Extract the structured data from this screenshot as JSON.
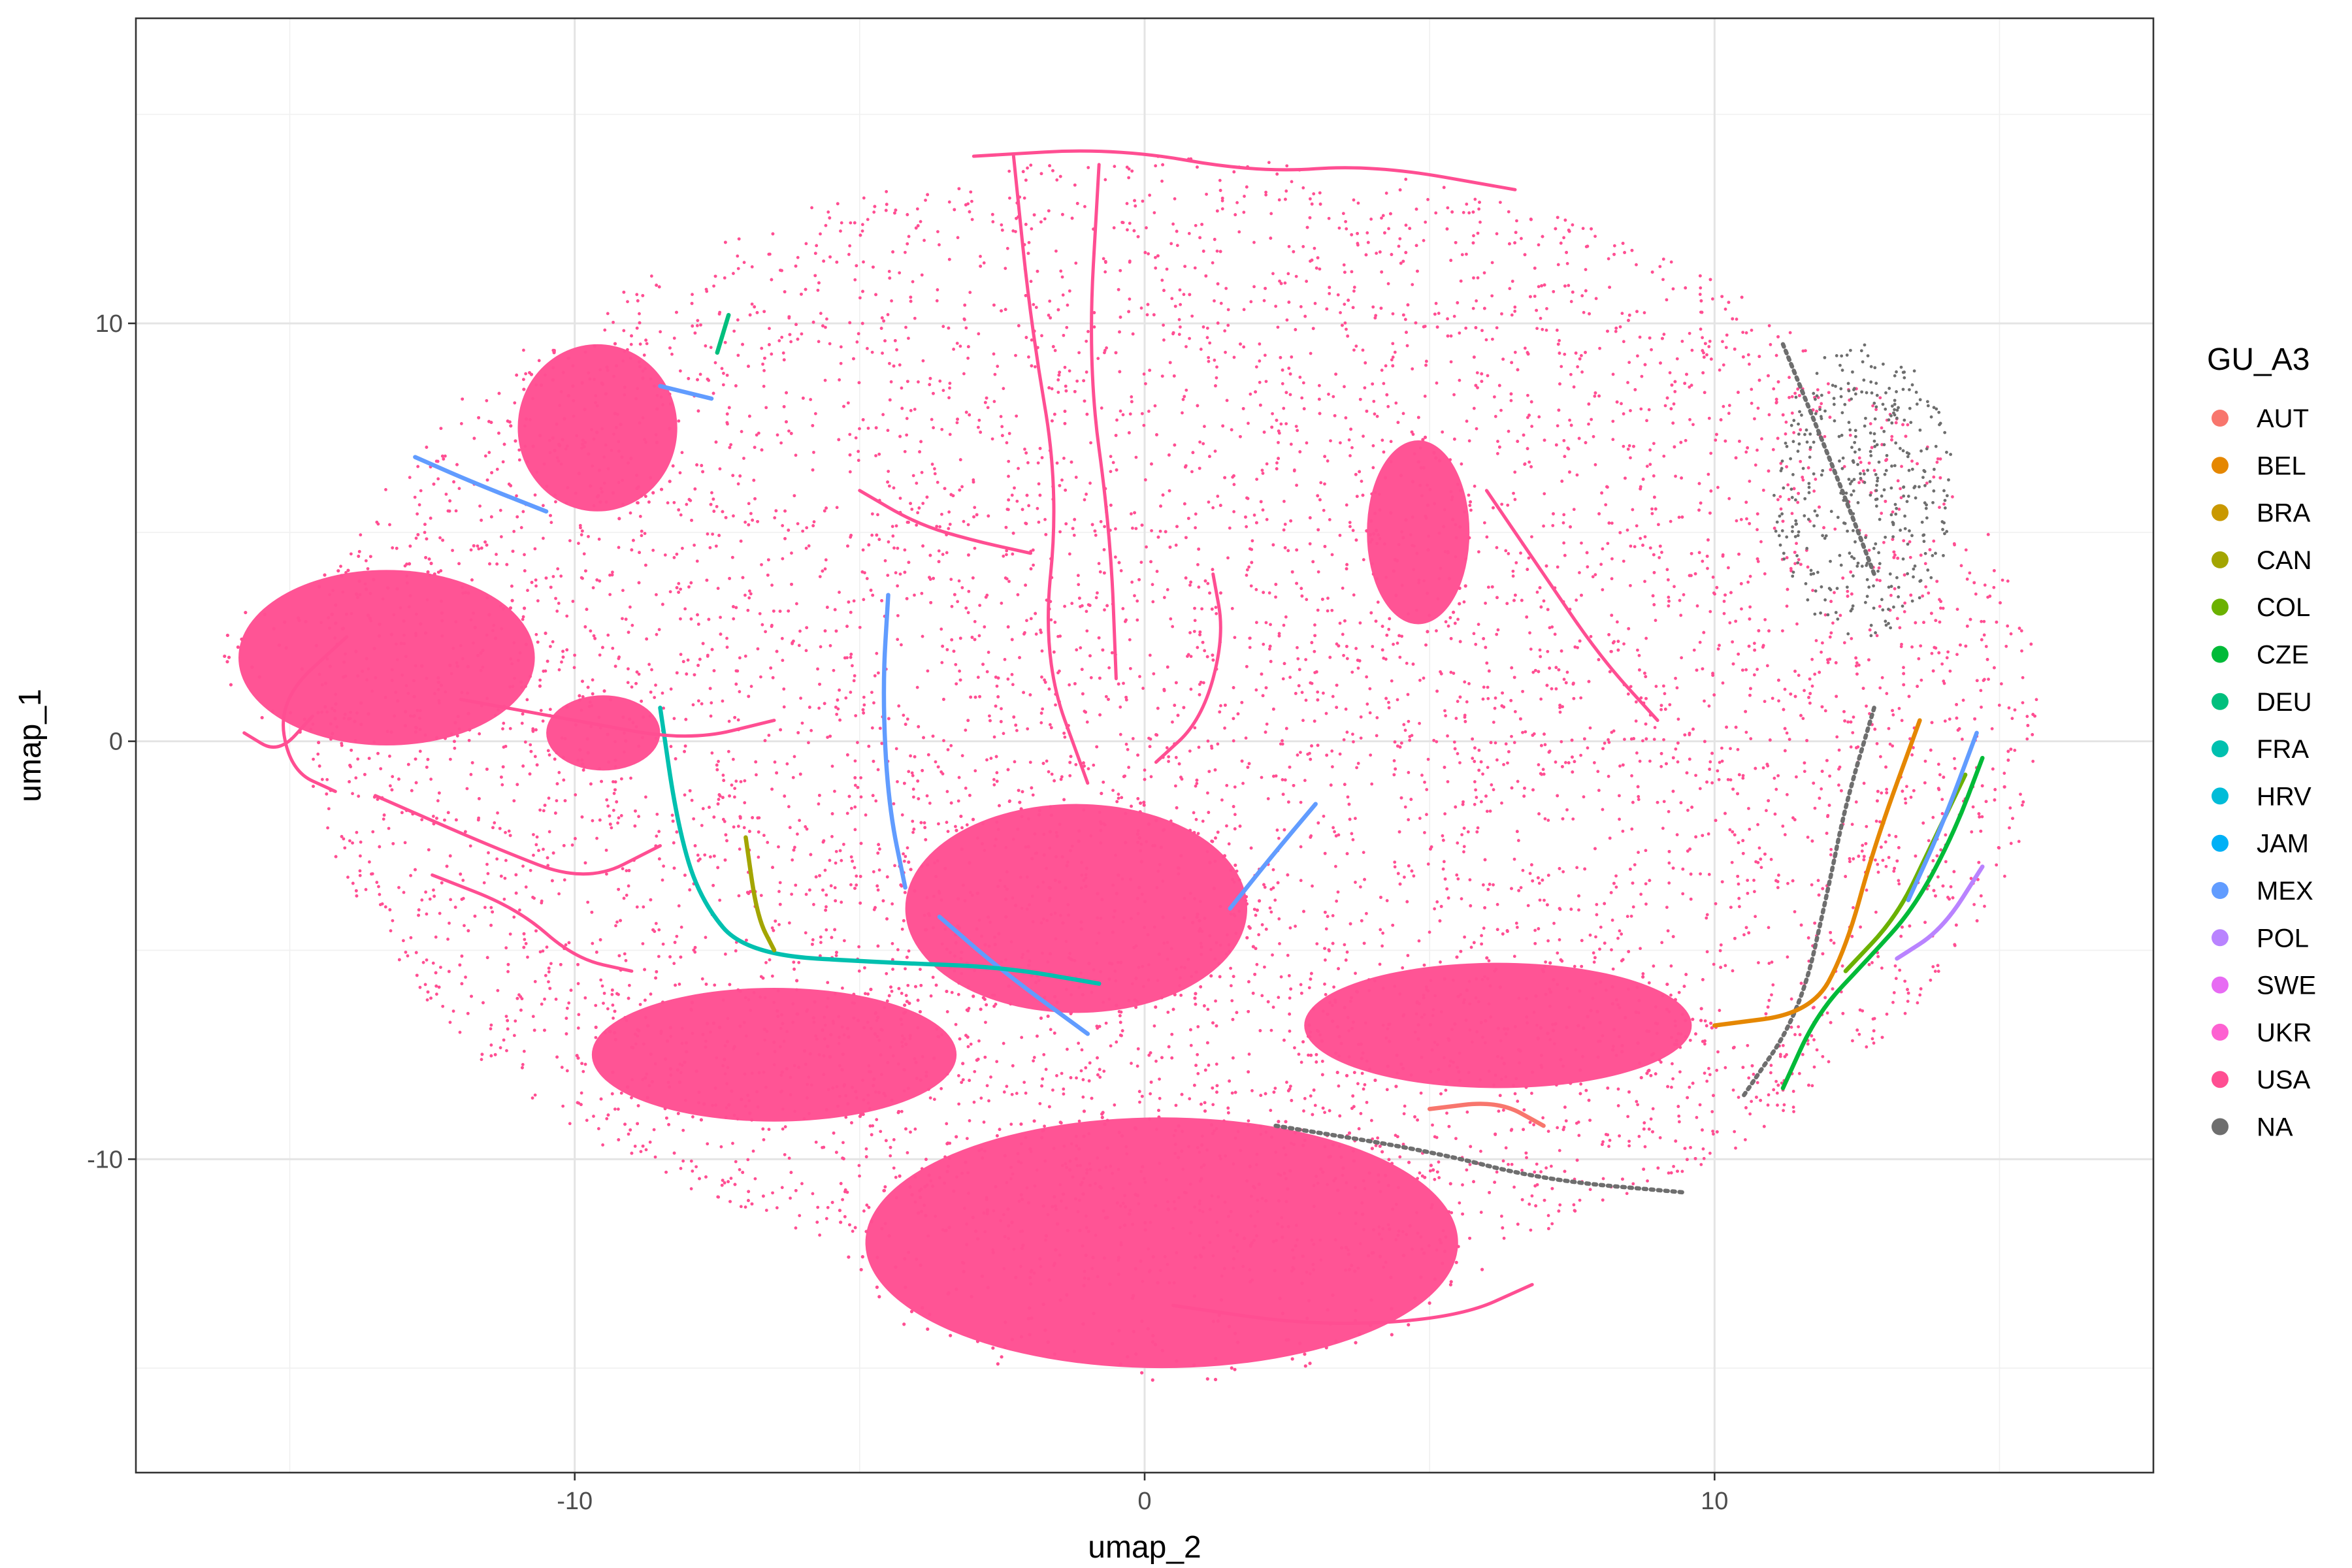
{
  "chart_data": {
    "type": "scatter",
    "title": "",
    "xlabel": "umap_2",
    "ylabel": "umap_1",
    "xlim": [
      -17.7,
      17.7
    ],
    "ylim": [
      -17.5,
      17.3
    ],
    "x_ticks": [
      -10,
      0,
      10
    ],
    "y_ticks": [
      -10,
      0,
      10
    ],
    "x_tick_labels": [
      "-10",
      "0",
      "10"
    ],
    "y_tick_labels": [
      "-10",
      "0",
      "10"
    ],
    "grid": true,
    "legend": {
      "title": "GU_A3",
      "placement": "right",
      "entries": [
        {
          "label": "AUT",
          "color": "#F8766D"
        },
        {
          "label": "BEL",
          "color": "#E58700"
        },
        {
          "label": "BRA",
          "color": "#C99800"
        },
        {
          "label": "CAN",
          "color": "#A3A500"
        },
        {
          "label": "COL",
          "color": "#6BB100"
        },
        {
          "label": "CZE",
          "color": "#00BA38"
        },
        {
          "label": "DEU",
          "color": "#00BF7D"
        },
        {
          "label": "FRA",
          "color": "#00C0AF"
        },
        {
          "label": "HRV",
          "color": "#00BCD8"
        },
        {
          "label": "JAM",
          "color": "#00B0F6"
        },
        {
          "label": "MEX",
          "color": "#619CFF"
        },
        {
          "label": "POL",
          "color": "#B983FF"
        },
        {
          "label": "SWE",
          "color": "#E76BF3"
        },
        {
          "label": "UKR",
          "color": "#FD61D1"
        },
        {
          "label": "USA",
          "color": "#FF4E92"
        },
        {
          "label": "NA",
          "color": "#6E6E6E"
        }
      ]
    },
    "regions": [
      {
        "group": "USA",
        "shape": "ellipse",
        "cx": 0.5,
        "cy": 0.5,
        "rx": 15.2,
        "ry": 13.5,
        "density": "sparse"
      },
      {
        "group": "USA",
        "shape": "ellipse",
        "cx": 0.3,
        "cy": -12.0,
        "rx": 5.2,
        "ry": 3.0,
        "density": "dense"
      },
      {
        "group": "USA",
        "shape": "ellipse",
        "cx": -13.3,
        "cy": 2.0,
        "rx": 2.6,
        "ry": 2.1,
        "density": "dense"
      },
      {
        "group": "USA",
        "shape": "ellipse",
        "cx": -9.6,
        "cy": 7.5,
        "rx": 1.4,
        "ry": 2.0,
        "density": "dense"
      },
      {
        "group": "USA",
        "shape": "ellipse",
        "cx": -6.5,
        "cy": -7.5,
        "rx": 3.2,
        "ry": 1.6,
        "density": "dense"
      },
      {
        "group": "USA",
        "shape": "ellipse",
        "cx": 6.2,
        "cy": -6.8,
        "rx": 3.4,
        "ry": 1.5,
        "density": "dense"
      },
      {
        "group": "USA",
        "shape": "ellipse",
        "cx": 4.8,
        "cy": 5.0,
        "rx": 0.9,
        "ry": 2.2,
        "density": "dense"
      },
      {
        "group": "USA",
        "shape": "ellipse",
        "cx": -9.5,
        "cy": 0.2,
        "rx": 1.0,
        "ry": 0.9,
        "density": "dense"
      },
      {
        "group": "USA",
        "shape": "ellipse",
        "cx": -1.2,
        "cy": -4.0,
        "rx": 3.0,
        "ry": 2.5,
        "density": "dense"
      },
      {
        "group": "NA",
        "shape": "ellipse",
        "cx": 12.6,
        "cy": 6.0,
        "rx": 1.6,
        "ry": 3.5,
        "density": "sparse"
      }
    ],
    "trajectories": [
      {
        "group": "NA",
        "points": [
          [
            11.2,
            9.5
          ],
          [
            11.8,
            7.5
          ],
          [
            12.3,
            5.8
          ],
          [
            12.8,
            4.0
          ]
        ]
      },
      {
        "group": "NA",
        "points": [
          [
            12.8,
            0.8
          ],
          [
            12.3,
            -1.5
          ],
          [
            12.0,
            -3.5
          ],
          [
            11.5,
            -6.5
          ],
          [
            10.5,
            -8.5
          ]
        ]
      },
      {
        "group": "NA",
        "points": [
          [
            2.3,
            -9.2
          ],
          [
            5.0,
            -9.8
          ],
          [
            7.0,
            -10.5
          ],
          [
            9.5,
            -10.8
          ]
        ]
      },
      {
        "group": "BEL",
        "points": [
          [
            13.6,
            0.5
          ],
          [
            12.8,
            -2.5
          ],
          [
            12.3,
            -5.0
          ],
          [
            11.7,
            -6.5
          ],
          [
            10.0,
            -6.8
          ]
        ]
      },
      {
        "group": "CZE",
        "points": [
          [
            14.7,
            -0.4
          ],
          [
            14.2,
            -2.2
          ],
          [
            13.5,
            -4.0
          ],
          [
            12.7,
            -5.2
          ],
          [
            11.8,
            -6.5
          ],
          [
            11.2,
            -8.3
          ]
        ]
      },
      {
        "group": "COL",
        "points": [
          [
            14.4,
            -0.8
          ],
          [
            13.8,
            -2.5
          ],
          [
            13.2,
            -4.2
          ],
          [
            12.3,
            -5.5
          ]
        ]
      },
      {
        "group": "POL",
        "points": [
          [
            14.7,
            -3.0
          ],
          [
            14.0,
            -4.5
          ],
          [
            13.2,
            -5.2
          ]
        ]
      },
      {
        "group": "MEX",
        "points": [
          [
            14.6,
            0.2
          ],
          [
            14.0,
            -2.0
          ],
          [
            13.4,
            -3.8
          ]
        ]
      },
      {
        "group": "MEX",
        "points": [
          [
            -4.5,
            3.5
          ],
          [
            -4.6,
            1.2
          ],
          [
            -4.5,
            -1.5
          ],
          [
            -4.2,
            -3.5
          ]
        ]
      },
      {
        "group": "MEX",
        "points": [
          [
            -12.8,
            6.8
          ],
          [
            -11.8,
            6.2
          ],
          [
            -10.5,
            5.5
          ]
        ]
      },
      {
        "group": "MEX",
        "points": [
          [
            3.0,
            -1.5
          ],
          [
            2.2,
            -2.8
          ],
          [
            1.5,
            -4.0
          ]
        ]
      },
      {
        "group": "MEX",
        "points": [
          [
            -3.6,
            -4.2
          ],
          [
            -2.5,
            -5.5
          ],
          [
            -1.0,
            -7.0
          ]
        ]
      },
      {
        "group": "MEX",
        "points": [
          [
            -8.5,
            8.5
          ],
          [
            -7.6,
            8.2
          ]
        ]
      },
      {
        "group": "FRA",
        "points": [
          [
            -8.5,
            0.8
          ],
          [
            -8.2,
            -2.0
          ],
          [
            -7.8,
            -3.8
          ],
          [
            -7.0,
            -5.1
          ],
          [
            -4.5,
            -5.3
          ],
          [
            -2.5,
            -5.4
          ],
          [
            -0.8,
            -5.8
          ]
        ]
      },
      {
        "group": "DEU",
        "points": [
          [
            -7.3,
            10.2
          ],
          [
            -7.5,
            9.3
          ]
        ]
      },
      {
        "group": "CAN",
        "points": [
          [
            -7.0,
            -2.3
          ],
          [
            -6.8,
            -4.2
          ],
          [
            -6.5,
            -5.0
          ]
        ]
      },
      {
        "group": "AUT",
        "points": [
          [
            5.0,
            -8.8
          ],
          [
            6.2,
            -8.6
          ],
          [
            7.0,
            -9.2
          ]
        ]
      },
      {
        "group": "USA",
        "points": [
          [
            -3.0,
            14.0
          ],
          [
            -0.5,
            14.2
          ],
          [
            2.0,
            13.6
          ],
          [
            4.0,
            13.8
          ],
          [
            6.5,
            13.2
          ]
        ]
      },
      {
        "group": "USA",
        "points": [
          [
            -2.3,
            14.0
          ],
          [
            -2.0,
            10.0
          ],
          [
            -1.5,
            6.0
          ],
          [
            -1.8,
            2.0
          ],
          [
            -1.0,
            -1.0
          ]
        ]
      },
      {
        "group": "USA",
        "points": [
          [
            -0.8,
            13.8
          ],
          [
            -1.0,
            9.0
          ],
          [
            -0.6,
            5.0
          ],
          [
            -0.5,
            1.5
          ]
        ]
      },
      {
        "group": "USA",
        "points": [
          [
            -13.5,
            -1.3
          ],
          [
            -11.5,
            -2.5
          ],
          [
            -9.8,
            -3.4
          ],
          [
            -8.5,
            -2.5
          ]
        ]
      },
      {
        "group": "USA",
        "points": [
          [
            -12.5,
            -3.2
          ],
          [
            -11.0,
            -4.0
          ],
          [
            -10.0,
            -5.2
          ],
          [
            -9.0,
            -5.5
          ]
        ]
      },
      {
        "group": "USA",
        "points": [
          [
            -14.0,
            2.5
          ],
          [
            -15.2,
            1.0
          ],
          [
            -15.0,
            -0.7
          ],
          [
            -14.2,
            -1.2
          ]
        ]
      },
      {
        "group": "USA",
        "points": [
          [
            -15.8,
            0.2
          ],
          [
            -15.2,
            -0.3
          ],
          [
            -14.6,
            0.6
          ]
        ]
      },
      {
        "group": "USA",
        "points": [
          [
            1.2,
            4.0
          ],
          [
            1.4,
            2.5
          ],
          [
            1.0,
            0.5
          ],
          [
            0.2,
            -0.5
          ]
        ]
      },
      {
        "group": "USA",
        "points": [
          [
            -12.0,
            1.0
          ],
          [
            -10.0,
            0.5
          ],
          [
            -8.0,
            0.0
          ],
          [
            -6.5,
            0.5
          ]
        ]
      },
      {
        "group": "USA",
        "points": [
          [
            0.5,
            -13.5
          ],
          [
            3.0,
            -14.0
          ],
          [
            5.5,
            -13.8
          ],
          [
            6.8,
            -13.0
          ]
        ]
      },
      {
        "group": "USA",
        "points": [
          [
            -5.0,
            6.0
          ],
          [
            -4.0,
            5.2
          ],
          [
            -3.0,
            4.8
          ],
          [
            -2.0,
            4.5
          ]
        ]
      },
      {
        "group": "USA",
        "points": [
          [
            6.0,
            6.0
          ],
          [
            7.0,
            4.0
          ],
          [
            8.0,
            2.0
          ],
          [
            9.0,
            0.5
          ]
        ]
      }
    ]
  }
}
